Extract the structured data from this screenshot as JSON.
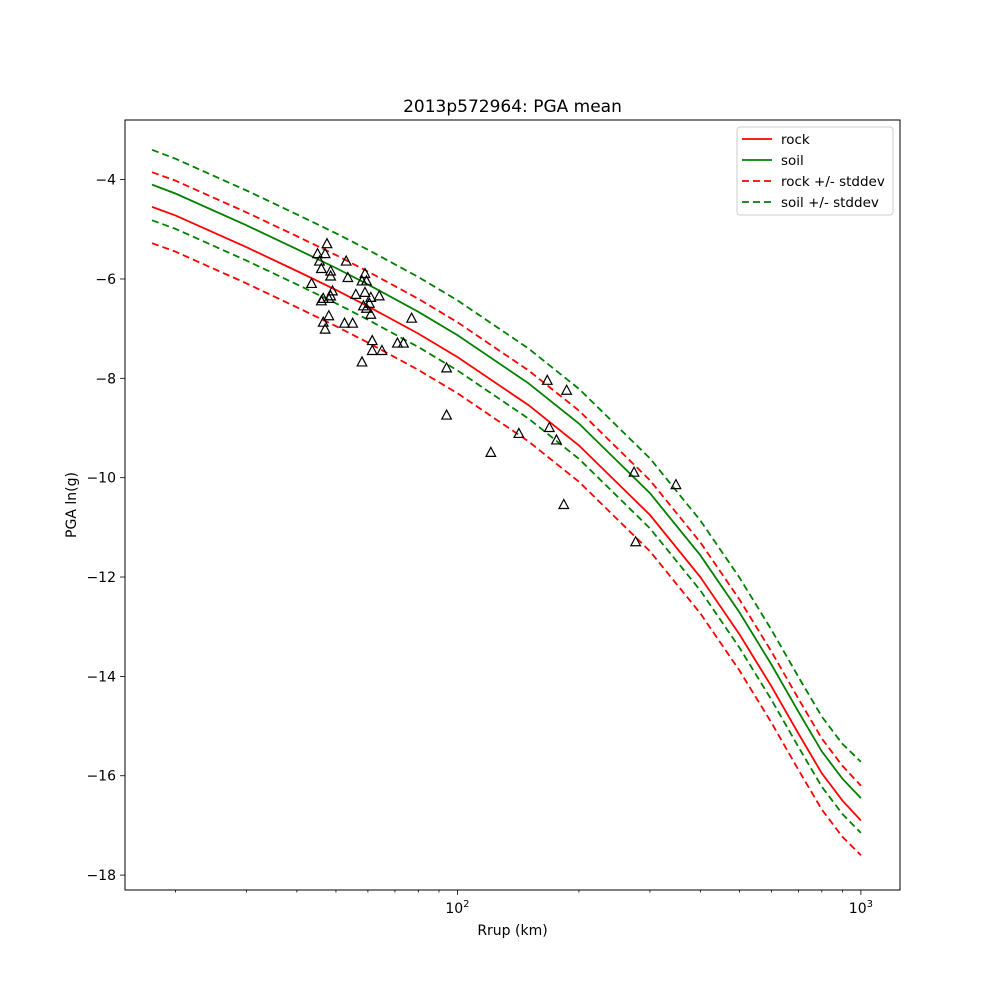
{
  "chart_data": {
    "type": "line",
    "title": "2013p572964: PGA mean",
    "xlabel": "Rrup (km)",
    "ylabel": "PGA ln(g)",
    "xscale": "log",
    "xlim": [
      15,
      1250
    ],
    "ylim": [
      -18.3,
      -2.8
    ],
    "grid": false,
    "legend_position": "top-right",
    "x_ticks": [
      {
        "value": 100,
        "base": "10",
        "exp": "2"
      },
      {
        "value": 1000,
        "base": "10",
        "exp": "3"
      }
    ],
    "y_ticks": [
      -4,
      -6,
      -8,
      -10,
      -12,
      -14,
      -16,
      -18
    ],
    "x": [
      17.5,
      20,
      30,
      40,
      50,
      60,
      80,
      100,
      150,
      200,
      300,
      400,
      500,
      600,
      700,
      800,
      900,
      1000
    ],
    "series": [
      {
        "name": "rock",
        "color": "#ff0000",
        "style": "solid",
        "values": [
          -4.55,
          -4.72,
          -5.36,
          -5.84,
          -6.22,
          -6.55,
          -7.1,
          -7.57,
          -8.54,
          -9.35,
          -10.75,
          -12.0,
          -13.15,
          -14.2,
          -15.15,
          -15.95,
          -16.5,
          -16.9
        ]
      },
      {
        "name": "soil",
        "color": "#008000",
        "style": "solid",
        "values": [
          -4.1,
          -4.28,
          -4.92,
          -5.4,
          -5.78,
          -6.11,
          -6.66,
          -7.13,
          -8.1,
          -8.91,
          -10.31,
          -11.56,
          -12.71,
          -13.76,
          -14.71,
          -15.51,
          -16.06,
          -16.45
        ]
      },
      {
        "name": "rock +/- stddev",
        "color": "#ff0000",
        "style": "dashed",
        "band": "upper",
        "values": [
          -3.85,
          -4.02,
          -4.66,
          -5.14,
          -5.52,
          -5.85,
          -6.4,
          -6.87,
          -7.84,
          -8.65,
          -10.05,
          -11.3,
          -12.45,
          -13.5,
          -14.45,
          -15.25,
          -15.8,
          -16.2
        ]
      },
      {
        "name": "",
        "color": "#ff0000",
        "style": "dashed",
        "band": "lower",
        "values": [
          -5.28,
          -5.45,
          -6.09,
          -6.57,
          -6.95,
          -7.28,
          -7.83,
          -8.3,
          -9.27,
          -10.08,
          -11.48,
          -12.73,
          -13.88,
          -14.93,
          -15.88,
          -16.68,
          -17.23,
          -17.6
        ]
      },
      {
        "name": "soil +/- stddev",
        "color": "#008000",
        "style": "dashed",
        "band": "upper",
        "values": [
          -3.4,
          -3.58,
          -4.22,
          -4.7,
          -5.08,
          -5.41,
          -5.96,
          -6.43,
          -7.4,
          -8.21,
          -9.61,
          -10.86,
          -12.01,
          -13.06,
          -14.01,
          -14.81,
          -15.36,
          -15.72
        ]
      },
      {
        "name": "",
        "color": "#008000",
        "style": "dashed",
        "band": "lower",
        "values": [
          -4.82,
          -4.99,
          -5.63,
          -6.11,
          -6.49,
          -6.82,
          -7.37,
          -7.84,
          -8.81,
          -9.62,
          -11.02,
          -12.27,
          -13.42,
          -14.47,
          -15.42,
          -16.22,
          -16.77,
          -17.15
        ]
      }
    ],
    "observations": {
      "marker": "triangle",
      "edge_color": "#000000",
      "points": [
        [
          43.5,
          -6.1
        ],
        [
          45,
          -5.5
        ],
        [
          45.5,
          -5.65
        ],
        [
          46,
          -5.8
        ],
        [
          46,
          -6.45
        ],
        [
          46.5,
          -6.4
        ],
        [
          46.5,
          -6.88
        ],
        [
          47,
          -7.02
        ],
        [
          47,
          -5.5
        ],
        [
          47.5,
          -5.3
        ],
        [
          48,
          -6.4
        ],
        [
          48,
          -6.75
        ],
        [
          48.5,
          -6.35
        ],
        [
          48.5,
          -5.95
        ],
        [
          48.5,
          -5.85
        ],
        [
          49,
          -6.25
        ],
        [
          52.5,
          -6.9
        ],
        [
          53,
          -5.65
        ],
        [
          53.5,
          -5.98
        ],
        [
          55,
          -6.9
        ],
        [
          56,
          -6.32
        ],
        [
          58,
          -6.05
        ],
        [
          58.5,
          -6.55
        ],
        [
          59,
          -5.9
        ],
        [
          59,
          -6.28
        ],
        [
          59.5,
          -6.05
        ],
        [
          59.5,
          -6.6
        ],
        [
          60.5,
          -6.5
        ],
        [
          61,
          -6.72
        ],
        [
          61,
          -6.38
        ],
        [
          61.5,
          -7.25
        ],
        [
          61.5,
          -7.45
        ],
        [
          64,
          -6.35
        ],
        [
          65,
          -7.45
        ],
        [
          58,
          -7.68
        ],
        [
          71,
          -7.3
        ],
        [
          73.5,
          -7.3
        ],
        [
          77,
          -6.8
        ],
        [
          94,
          -7.8
        ],
        [
          94,
          -8.75
        ],
        [
          121,
          -9.5
        ],
        [
          142,
          -9.12
        ],
        [
          167,
          -8.05
        ],
        [
          169,
          -9.0
        ],
        [
          176,
          -9.25
        ],
        [
          183.5,
          -10.55
        ],
        [
          186.5,
          -8.25
        ],
        [
          274,
          -9.9
        ],
        [
          276.5,
          -11.3
        ],
        [
          348,
          -10.15
        ]
      ]
    }
  }
}
